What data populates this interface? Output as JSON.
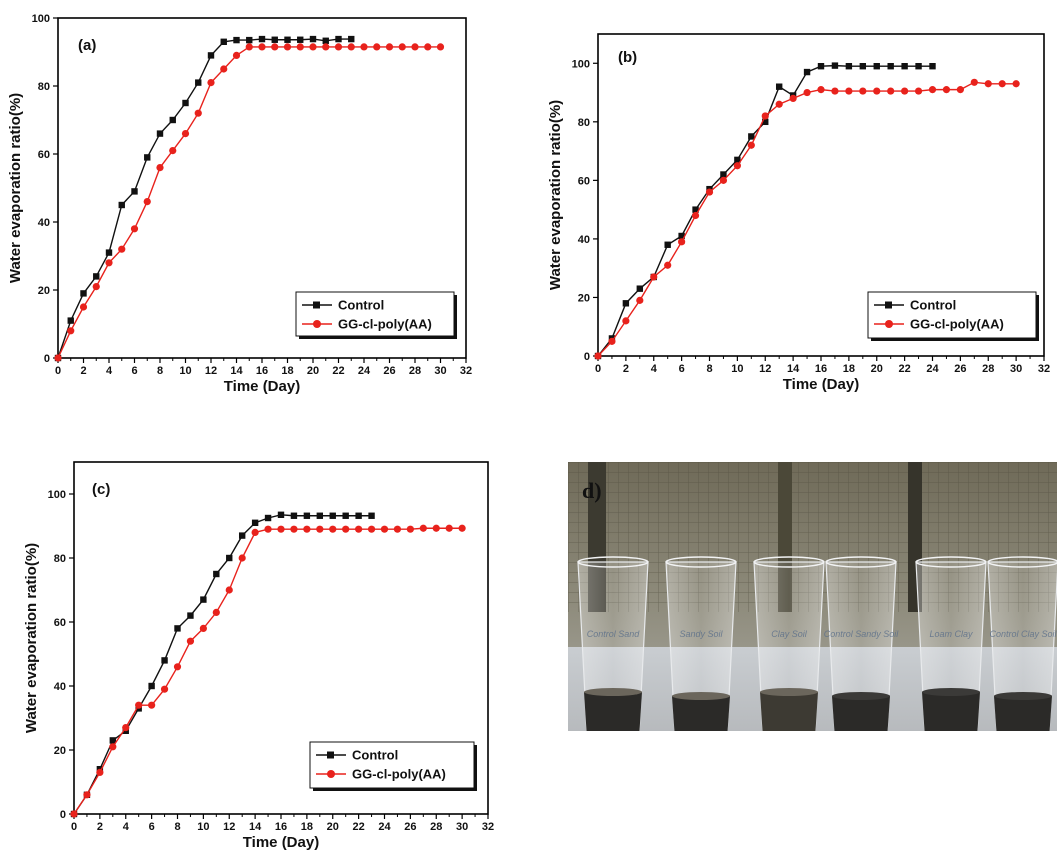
{
  "colors": {
    "control": "#111111",
    "gg": "#e8221c",
    "axis": "#000000"
  },
  "chart_data": [
    {
      "type": "line",
      "panel_label": "(a)",
      "xlabel": "Time (Day)",
      "ylabel": "Water evaporation ratio(%)",
      "xlim": [
        0,
        32
      ],
      "ylim": [
        0,
        100
      ],
      "xticks": [
        0,
        2,
        4,
        6,
        8,
        10,
        12,
        14,
        16,
        18,
        20,
        22,
        24,
        26,
        28,
        30,
        32
      ],
      "yticks": [
        0,
        20,
        40,
        60,
        80,
        100
      ],
      "legend": "bottom-right",
      "series": [
        {
          "name": "Control",
          "marker": "square",
          "color": "#111111",
          "x": [
            0,
            1,
            2,
            3,
            4,
            5,
            6,
            7,
            8,
            9,
            10,
            11,
            12,
            13,
            14,
            15,
            16,
            17,
            18,
            19,
            20,
            21,
            22,
            23
          ],
          "y": [
            0,
            11,
            19,
            24,
            31,
            45,
            49,
            59,
            66,
            70,
            75,
            81,
            89,
            93,
            93.5,
            93.5,
            93.8,
            93.6,
            93.6,
            93.6,
            93.8,
            93.3,
            93.8,
            93.8
          ]
        },
        {
          "name": "GG-cl-poly(AA)",
          "marker": "circle",
          "color": "#e8221c",
          "x": [
            0,
            1,
            2,
            3,
            4,
            5,
            6,
            7,
            8,
            9,
            10,
            11,
            12,
            13,
            14,
            15,
            16,
            17,
            18,
            19,
            20,
            21,
            22,
            23,
            24,
            25,
            26,
            27,
            28,
            29,
            30
          ],
          "y": [
            0,
            8,
            15,
            21,
            28,
            32,
            38,
            46,
            56,
            61,
            66,
            72,
            81,
            85,
            89,
            91.5,
            91.5,
            91.5,
            91.5,
            91.5,
            91.5,
            91.5,
            91.5,
            91.5,
            91.5,
            91.5,
            91.5,
            91.5,
            91.5,
            91.5,
            91.5
          ]
        }
      ]
    },
    {
      "type": "line",
      "panel_label": "(b)",
      "xlabel": "Time (Day)",
      "ylabel": "Water evaporation ratio(%)",
      "xlim": [
        0,
        32
      ],
      "ylim": [
        0,
        110
      ],
      "xticks": [
        0,
        2,
        4,
        6,
        8,
        10,
        12,
        14,
        16,
        18,
        20,
        22,
        24,
        26,
        28,
        30,
        32
      ],
      "yticks": [
        0,
        20,
        40,
        60,
        80,
        100
      ],
      "legend": "bottom-right",
      "series": [
        {
          "name": "Control",
          "marker": "square",
          "color": "#111111",
          "x": [
            0,
            1,
            2,
            3,
            4,
            5,
            6,
            7,
            8,
            9,
            10,
            11,
            12,
            13,
            14,
            15,
            16,
            17,
            18,
            19,
            20,
            21,
            22,
            23,
            24
          ],
          "y": [
            0,
            6,
            18,
            23,
            27,
            38,
            41,
            50,
            57,
            62,
            67,
            75,
            80,
            92,
            89,
            97,
            99,
            99.2,
            99,
            99,
            99,
            99,
            99,
            99,
            99
          ]
        },
        {
          "name": "GG-cl-poly(AA)",
          "marker": "circle",
          "color": "#e8221c",
          "x": [
            0,
            1,
            2,
            3,
            4,
            5,
            6,
            7,
            8,
            9,
            10,
            11,
            12,
            13,
            14,
            15,
            16,
            17,
            18,
            19,
            20,
            21,
            22,
            23,
            24,
            25,
            26,
            27,
            28,
            29,
            30
          ],
          "y": [
            0,
            5,
            12,
            19,
            27,
            31,
            39,
            48,
            56,
            60,
            65,
            72,
            82,
            86,
            88,
            90,
            91,
            90.5,
            90.5,
            90.5,
            90.5,
            90.5,
            90.5,
            90.5,
            91,
            91,
            91,
            93.5,
            93,
            93,
            93
          ]
        }
      ]
    },
    {
      "type": "line",
      "panel_label": "(c)",
      "xlabel": "Time (Day)",
      "ylabel": "Water evaporation ratio(%)",
      "xlim": [
        0,
        32
      ],
      "ylim": [
        0,
        110
      ],
      "xticks": [
        0,
        2,
        4,
        6,
        8,
        10,
        12,
        14,
        16,
        18,
        20,
        22,
        24,
        26,
        28,
        30,
        32
      ],
      "yticks": [
        0,
        20,
        40,
        60,
        80,
        100
      ],
      "legend": "bottom-right",
      "series": [
        {
          "name": "Control",
          "marker": "square",
          "color": "#111111",
          "x": [
            0,
            1,
            2,
            3,
            4,
            5,
            6,
            7,
            8,
            9,
            10,
            11,
            12,
            13,
            14,
            15,
            16,
            17,
            18,
            19,
            20,
            21,
            22,
            23
          ],
          "y": [
            0,
            6,
            14,
            23,
            26,
            33,
            40,
            48,
            58,
            62,
            67,
            75,
            80,
            87,
            91,
            92.5,
            93.5,
            93.2,
            93.2,
            93.2,
            93.2,
            93.2,
            93.2,
            93.2
          ]
        },
        {
          "name": "GG-cl-poly(AA)",
          "marker": "circle",
          "color": "#e8221c",
          "x": [
            0,
            1,
            2,
            3,
            4,
            5,
            6,
            7,
            8,
            9,
            10,
            11,
            12,
            13,
            14,
            15,
            16,
            17,
            18,
            19,
            20,
            21,
            22,
            23,
            24,
            25,
            26,
            27,
            28,
            29,
            30
          ],
          "y": [
            0,
            6,
            13,
            21,
            27,
            34,
            34,
            39,
            46,
            54,
            58,
            63,
            70,
            80,
            88,
            89,
            89,
            89,
            89,
            89,
            89,
            89,
            89,
            89,
            89,
            89,
            89,
            89.3,
            89.3,
            89.3,
            89.3
          ]
        }
      ]
    }
  ],
  "photo": {
    "label": "d)",
    "cup_labels": [
      "Control Sand",
      "Sandy Soil",
      "Clay Soil",
      "Control Sandy Soil",
      "Loam Clay",
      "Control Clay Soil"
    ]
  }
}
